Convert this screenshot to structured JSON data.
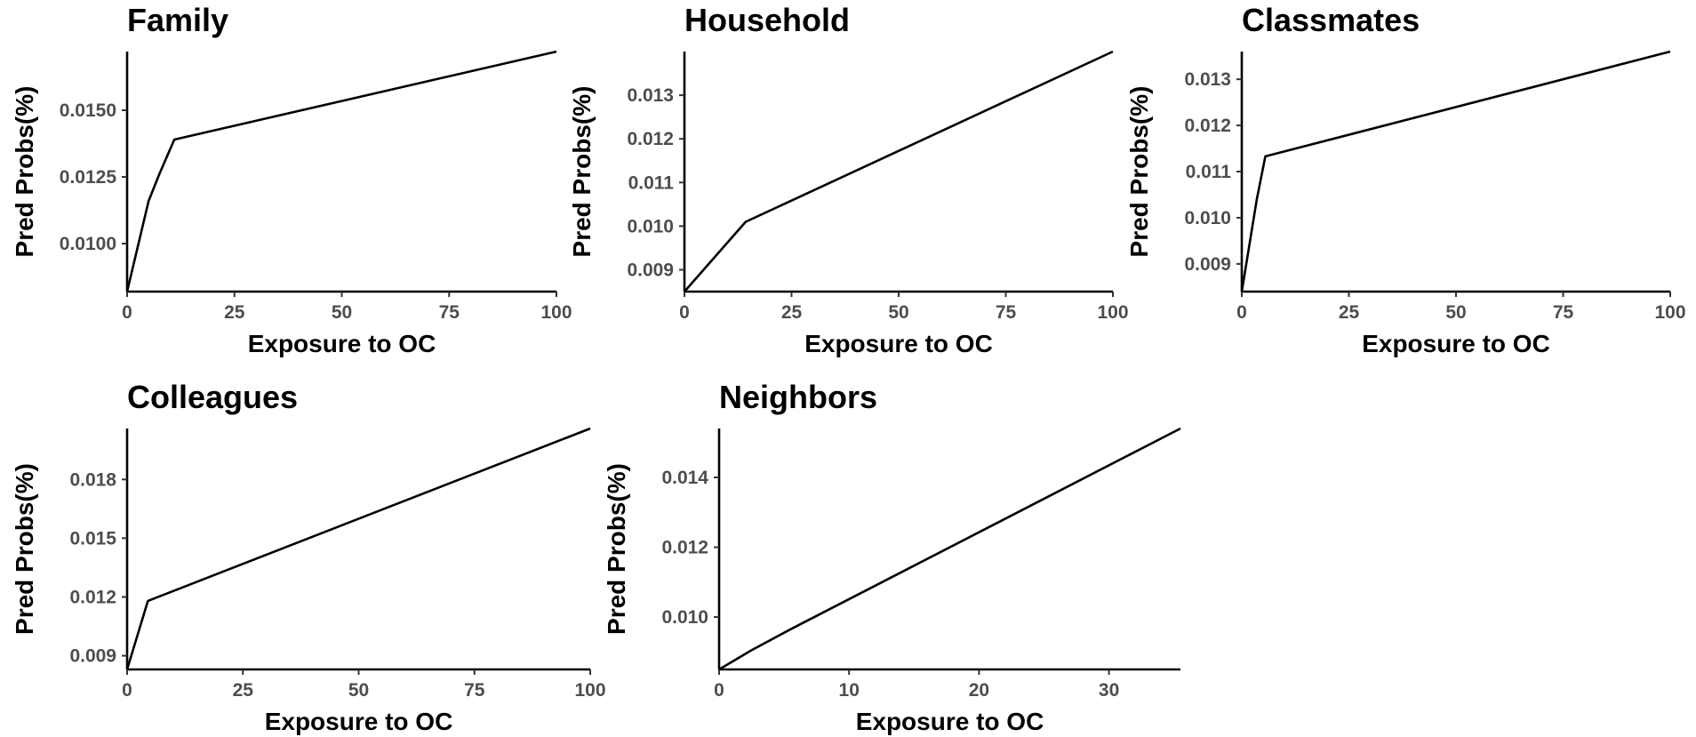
{
  "chart_data": [
    {
      "type": "line",
      "title": "Family",
      "xlabel": "Exposure to OC",
      "ylabel": "Pred Probs(%)",
      "xlim": [
        0,
        100
      ],
      "ylim": [
        0.0082,
        0.0172
      ],
      "xticks": [
        0,
        25,
        50,
        75,
        100
      ],
      "xtick_labels": [
        "0",
        "25",
        "50",
        "75",
        "100"
      ],
      "yticks": [
        0.01,
        0.0125,
        0.015
      ],
      "ytick_labels": [
        "0.0100",
        "0.0125",
        "0.0150"
      ],
      "grid": false,
      "series": [
        {
          "x": [
            0,
            5,
            7.5,
            11,
            100
          ],
          "y": [
            0.0082,
            0.0116,
            0.0126,
            0.0139,
            0.0172
          ]
        }
      ]
    },
    {
      "type": "line",
      "title": "Household",
      "xlabel": "Exposure to OC",
      "ylabel": "Pred Probs(%)",
      "xlim": [
        0,
        100
      ],
      "ylim": [
        0.0085,
        0.014
      ],
      "xticks": [
        0,
        25,
        50,
        75,
        100
      ],
      "xtick_labels": [
        "0",
        "25",
        "50",
        "75",
        "100"
      ],
      "yticks": [
        0.009,
        0.01,
        0.011,
        0.012,
        0.013
      ],
      "ytick_labels": [
        "0.009",
        "0.010",
        "0.011",
        "0.012",
        "0.013"
      ],
      "grid": false,
      "series": [
        {
          "x": [
            0,
            14.3,
            100
          ],
          "y": [
            0.0085,
            0.0101,
            0.014
          ]
        }
      ]
    },
    {
      "type": "line",
      "title": "Classmates",
      "xlabel": "Exposure to OC",
      "ylabel": "Pred Probs(%)",
      "xlim": [
        0,
        100
      ],
      "ylim": [
        0.0084,
        0.0136
      ],
      "xticks": [
        0,
        25,
        50,
        75,
        100
      ],
      "xtick_labels": [
        "0",
        "25",
        "50",
        "75",
        "100"
      ],
      "yticks": [
        0.009,
        0.01,
        0.011,
        0.012,
        0.013
      ],
      "ytick_labels": [
        "0.009",
        "0.010",
        "0.011",
        "0.012",
        "0.013"
      ],
      "grid": false,
      "series": [
        {
          "x": [
            0,
            3.5,
            5.5,
            100
          ],
          "y": [
            0.0084,
            0.0104,
            0.01133,
            0.0136
          ]
        }
      ]
    },
    {
      "type": "line",
      "title": "Colleagues",
      "xlabel": "Exposure to OC",
      "ylabel": "Pred Probs(%)",
      "xlim": [
        0,
        100
      ],
      "ylim": [
        0.0083,
        0.0206
      ],
      "xticks": [
        0,
        25,
        50,
        75,
        100
      ],
      "xtick_labels": [
        "0",
        "25",
        "50",
        "75",
        "100"
      ],
      "yticks": [
        0.009,
        0.012,
        0.015,
        0.018
      ],
      "ytick_labels": [
        "0.009",
        "0.012",
        "0.015",
        "0.018"
      ],
      "grid": false,
      "series": [
        {
          "x": [
            0,
            4.5,
            100
          ],
          "y": [
            0.0083,
            0.0118,
            0.0206
          ]
        }
      ]
    },
    {
      "type": "line",
      "title": "Neighbors",
      "xlabel": "Exposure to OC",
      "ylabel": "Pred Probs(%)",
      "xlim": [
        0,
        35.5
      ],
      "ylim": [
        0.0085,
        0.0154
      ],
      "xticks": [
        0,
        10,
        20,
        30
      ],
      "xtick_labels": [
        "0",
        "10",
        "20",
        "30"
      ],
      "yticks": [
        0.01,
        0.012,
        0.014
      ],
      "ytick_labels": [
        "0.010",
        "0.012",
        "0.014"
      ],
      "grid": false,
      "series": [
        {
          "x": [
            0,
            2.5,
            5.5,
            35.5
          ],
          "y": [
            0.0085,
            0.00905,
            0.00965,
            0.0154
          ]
        }
      ]
    }
  ]
}
